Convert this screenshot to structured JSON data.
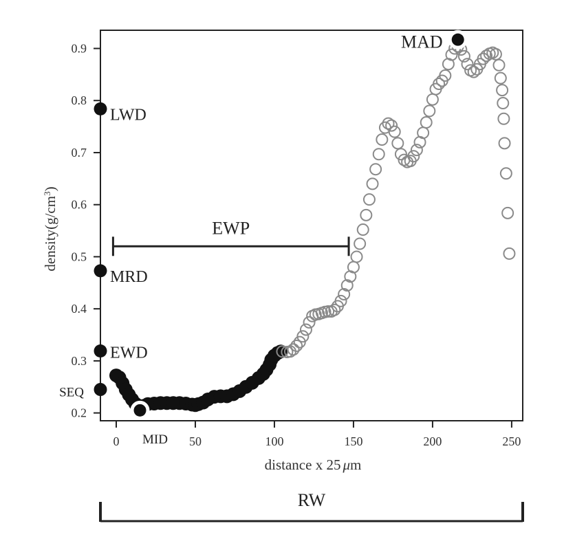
{
  "chart_data": {
    "type": "scatter",
    "xlabel_prefix": "distance x 25",
    "xlabel_mu": "μ",
    "xlabel_suffix": "m",
    "ylabel_prefix": "density(g/cm",
    "ylabel_sup": "3",
    "ylabel_suffix": ")",
    "xlim": [
      -10,
      257
    ],
    "ylim": [
      0.185,
      0.935
    ],
    "x_ticks": [
      0,
      50,
      100,
      150,
      200,
      250
    ],
    "x_tick_labels": [
      "0",
      "50",
      "100",
      "150",
      "200",
      "250"
    ],
    "y_ticks": [
      0.2,
      0.3,
      0.4,
      0.5,
      0.6,
      0.7,
      0.8,
      0.9
    ],
    "y_tick_labels": [
      "0.2",
      "0.3",
      "0.4",
      "0.5",
      "0.6",
      "0.7",
      "0.8",
      "0.9"
    ],
    "grid": false,
    "series": [
      {
        "style": "filled",
        "color": "#111111",
        "points": [
          [
            0,
            0.272
          ],
          [
            2,
            0.268
          ],
          [
            4,
            0.257
          ],
          [
            6,
            0.245
          ],
          [
            8,
            0.235
          ],
          [
            10,
            0.226
          ],
          [
            12,
            0.218
          ],
          [
            14,
            0.214
          ],
          [
            18,
            0.214
          ],
          [
            20,
            0.217
          ],
          [
            24,
            0.218
          ],
          [
            28,
            0.219
          ],
          [
            32,
            0.219
          ],
          [
            36,
            0.219
          ],
          [
            40,
            0.219
          ],
          [
            44,
            0.218
          ],
          [
            48,
            0.216
          ],
          [
            50,
            0.215
          ],
          [
            52,
            0.217
          ],
          [
            55,
            0.22
          ],
          [
            58,
            0.226
          ],
          [
            62,
            0.231
          ],
          [
            66,
            0.232
          ],
          [
            70,
            0.232
          ],
          [
            74,
            0.236
          ],
          [
            78,
            0.242
          ],
          [
            82,
            0.25
          ],
          [
            86,
            0.258
          ],
          [
            90,
            0.267
          ],
          [
            93,
            0.275
          ],
          [
            95,
            0.283
          ],
          [
            97,
            0.293
          ],
          [
            98,
            0.302
          ],
          [
            100,
            0.31
          ],
          [
            102,
            0.315
          ],
          [
            104,
            0.318
          ]
        ]
      },
      {
        "style": "open",
        "color": "#8a8a8a",
        "points": [
          [
            105,
            0.318
          ],
          [
            108,
            0.317
          ],
          [
            110,
            0.318
          ],
          [
            112,
            0.322
          ],
          [
            114,
            0.329
          ],
          [
            116,
            0.336
          ],
          [
            118,
            0.347
          ],
          [
            120,
            0.36
          ],
          [
            122,
            0.374
          ],
          [
            124,
            0.386
          ],
          [
            126,
            0.389
          ],
          [
            128,
            0.39
          ],
          [
            130,
            0.392
          ],
          [
            132,
            0.394
          ],
          [
            134,
            0.395
          ],
          [
            136,
            0.395
          ],
          [
            138,
            0.398
          ],
          [
            140,
            0.405
          ],
          [
            142,
            0.415
          ],
          [
            144,
            0.428
          ],
          [
            146,
            0.445
          ],
          [
            148,
            0.462
          ],
          [
            150,
            0.48
          ],
          [
            152,
            0.5
          ],
          [
            154,
            0.525
          ],
          [
            156,
            0.552
          ],
          [
            158,
            0.58
          ],
          [
            160,
            0.61
          ],
          [
            162,
            0.64
          ],
          [
            164,
            0.668
          ],
          [
            166,
            0.697
          ],
          [
            168,
            0.725
          ],
          [
            170,
            0.748
          ],
          [
            172,
            0.756
          ],
          [
            174,
            0.752
          ],
          [
            176,
            0.74
          ],
          [
            178,
            0.718
          ],
          [
            180,
            0.697
          ],
          [
            182,
            0.686
          ],
          [
            184,
            0.682
          ],
          [
            186,
            0.684
          ],
          [
            188,
            0.693
          ],
          [
            190,
            0.705
          ],
          [
            192,
            0.72
          ],
          [
            194,
            0.738
          ],
          [
            196,
            0.758
          ],
          [
            198,
            0.78
          ],
          [
            200,
            0.802
          ],
          [
            202,
            0.822
          ],
          [
            204,
            0.832
          ],
          [
            206,
            0.838
          ],
          [
            208,
            0.848
          ],
          [
            210,
            0.87
          ],
          [
            212,
            0.888
          ],
          [
            214,
            0.9
          ],
          [
            216,
            0.904
          ],
          [
            218,
            0.898
          ],
          [
            220,
            0.885
          ],
          [
            222,
            0.87
          ],
          [
            224,
            0.858
          ],
          [
            226,
            0.855
          ],
          [
            228,
            0.86
          ],
          [
            230,
            0.87
          ],
          [
            232,
            0.88
          ],
          [
            234,
            0.886
          ],
          [
            236,
            0.89
          ],
          [
            238,
            0.892
          ],
          [
            240,
            0.889
          ],
          [
            242,
            0.868
          ],
          [
            243,
            0.843
          ],
          [
            244,
            0.82
          ],
          [
            244.5,
            0.795
          ],
          [
            245,
            0.765
          ],
          [
            245.5,
            0.718
          ],
          [
            246.5,
            0.66
          ],
          [
            247.5,
            0.584
          ],
          [
            248.5,
            0.506
          ]
        ]
      }
    ],
    "markers": [
      {
        "label": "LWD",
        "x": -10,
        "y": 0.784,
        "style": "dot"
      },
      {
        "label": "MRD",
        "x": -10,
        "y": 0.473,
        "style": "dot"
      },
      {
        "label": "EWD",
        "x": -10,
        "y": 0.319,
        "style": "dot"
      },
      {
        "label": "SEQ",
        "x": -10,
        "y": 0.245,
        "style": "dot"
      },
      {
        "label": "MID",
        "x": 15,
        "y": 0.205,
        "style": "ringed"
      },
      {
        "label": "MAD",
        "x": 216,
        "y": 0.917,
        "style": "ringed"
      }
    ],
    "ewp": {
      "label": "EWP",
      "x_start": -2,
      "x_end": 147,
      "y": 0.52
    },
    "rw": {
      "label": "RW",
      "x_start": -10,
      "x_end": 257
    }
  }
}
